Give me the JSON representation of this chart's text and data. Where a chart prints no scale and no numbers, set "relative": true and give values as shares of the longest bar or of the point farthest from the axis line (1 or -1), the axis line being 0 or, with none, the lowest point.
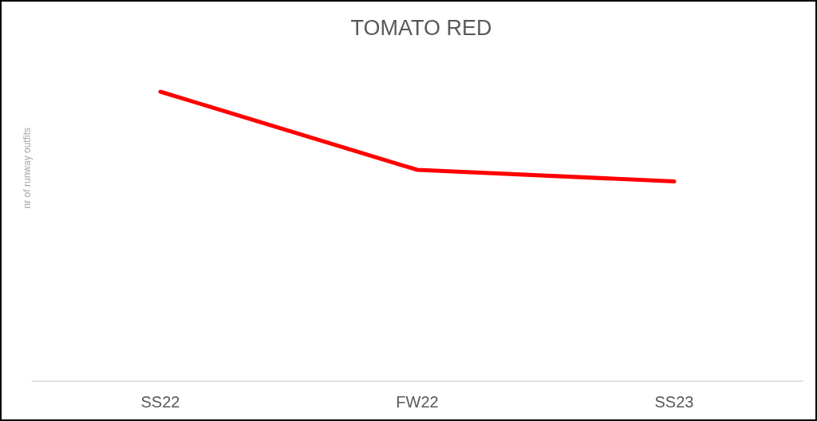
{
  "chart_data": {
    "type": "line",
    "title": "TOMATO RED",
    "ylabel": "nr of runway outfits",
    "categories": [
      "SS22",
      "FW22",
      "SS23"
    ],
    "series": [
      {
        "color": "#ff0000",
        "values": [
          1,
          0.73,
          0.69
        ]
      }
    ],
    "relative": true,
    "marker": "none",
    "line_style": "solid"
  }
}
